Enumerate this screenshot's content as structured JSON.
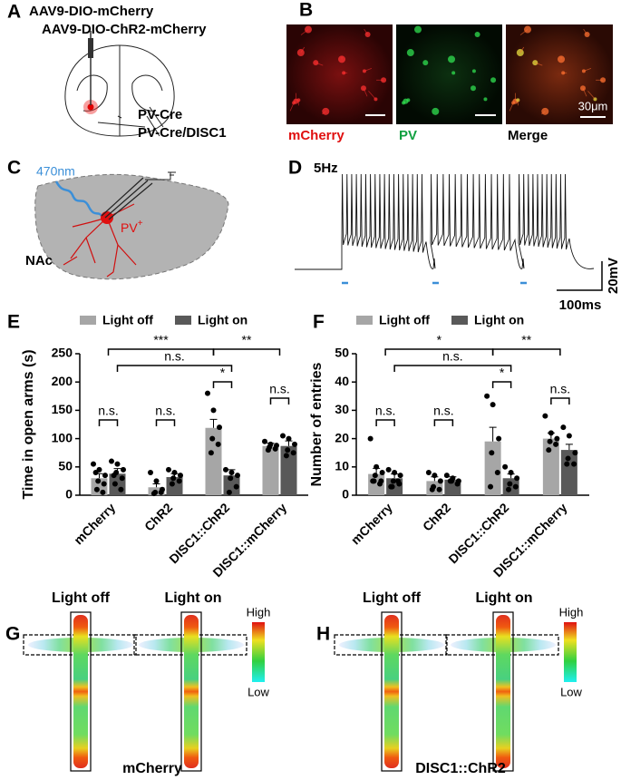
{
  "panel_a": {
    "label": "A",
    "virus_1": "AAV9-DIO-mCherry",
    "virus_2": "AAV9-DIO-ChR2-mCherry",
    "mouse_1": "PV-Cre",
    "mouse_2": "PV-Cre/DISC1"
  },
  "panel_b": {
    "label": "B",
    "images": [
      "mCherry",
      "PV",
      "Merge"
    ],
    "scale_bar": "30μm"
  },
  "panel_c": {
    "label": "C",
    "light": "470nm",
    "cell": "PV",
    "cell_superscript": "+",
    "region": "NAc"
  },
  "panel_d": {
    "label": "D",
    "frequency": "5Hz",
    "voltage_scale": "20mV",
    "time_scale": "100ms"
  },
  "chart_data": [
    {
      "panel": "E",
      "type": "bar",
      "y_label": "Time in open arms (s)",
      "categories": [
        "mCherry",
        "ChR2",
        "DISC1::ChR2",
        "DISC1::mCherry"
      ],
      "series": [
        {
          "name": "Light off",
          "color": "#a6a6a6",
          "values": [
            30,
            14,
            119,
            87
          ],
          "errors": [
            8,
            6,
            15,
            5
          ],
          "points": [
            [
              55,
              45,
              35,
              25,
              20,
              10,
              5,
              40
            ],
            [
              40,
              25,
              10,
              5,
              5,
              3
            ],
            [
              180,
              150,
              120,
              100,
              90,
              75
            ],
            [
              95,
              90,
              88,
              85,
              82,
              80
            ]
          ]
        },
        {
          "name": "Light on",
          "color": "#595959",
          "values": [
            38,
            32,
            35,
            87
          ],
          "errors": [
            9,
            6,
            10,
            9
          ],
          "points": [
            [
              60,
              55,
              45,
              40,
              30,
              20,
              10,
              35
            ],
            [
              45,
              40,
              35,
              30,
              25,
              20
            ],
            [
              45,
              40,
              35,
              30,
              15,
              5
            ],
            [
              105,
              100,
              90,
              80,
              75,
              70
            ]
          ]
        }
      ],
      "ylim": [
        0,
        250
      ],
      "yticks": [
        0,
        50,
        100,
        150,
        200,
        250
      ],
      "legend": "top",
      "significance": [
        "***",
        "n.s.",
        "**",
        "n.s.",
        "n.s.",
        "*",
        "n.s."
      ]
    },
    {
      "panel": "F",
      "type": "bar",
      "y_label": "Number of entries",
      "categories": [
        "mCherry",
        "ChR2",
        "DISC1::ChR2",
        "DISC1::mCherry"
      ],
      "series": [
        {
          "name": "Light off",
          "color": "#a6a6a6",
          "values": [
            7.5,
            5,
            19,
            20
          ],
          "errors": [
            2,
            1.5,
            5,
            2
          ],
          "points": [
            [
              20,
              10,
              8,
              7,
              5,
              5,
              4,
              5
            ],
            [
              8,
              7,
              5,
              3,
              2,
              2
            ],
            [
              35,
              32,
              20,
              15,
              8,
              3
            ],
            [
              28,
              22,
              20,
              19,
              18,
              16
            ]
          ]
        },
        {
          "name": "Light on",
          "color": "#595959",
          "values": [
            6,
            5.5,
            6,
            16
          ],
          "errors": [
            1.5,
            1,
            1.5,
            2
          ],
          "points": [
            [
              9,
              8,
              7,
              5,
              4,
              3,
              5,
              3
            ],
            [
              7,
              6,
              5,
              5,
              4,
              5
            ],
            [
              10,
              8,
              6,
              4,
              3,
              2
            ],
            [
              24,
              21,
              15,
              13,
              11,
              11
            ]
          ]
        }
      ],
      "ylim": [
        0,
        50
      ],
      "yticks": [
        0,
        10,
        20,
        30,
        40,
        50
      ],
      "legend": "top",
      "significance": [
        "*",
        "n.s.",
        "**",
        "n.s.",
        "n.s.",
        "*",
        "n.s."
      ]
    }
  ],
  "panel_g": {
    "label": "G",
    "conditions": [
      "Light off",
      "Light on"
    ],
    "group": "mCherry",
    "scale_high": "High",
    "scale_low": "Low"
  },
  "panel_h": {
    "label": "H",
    "conditions": [
      "Light off",
      "Light on"
    ],
    "group": "DISC1::ChR2",
    "scale_high": "High",
    "scale_low": "Low"
  }
}
